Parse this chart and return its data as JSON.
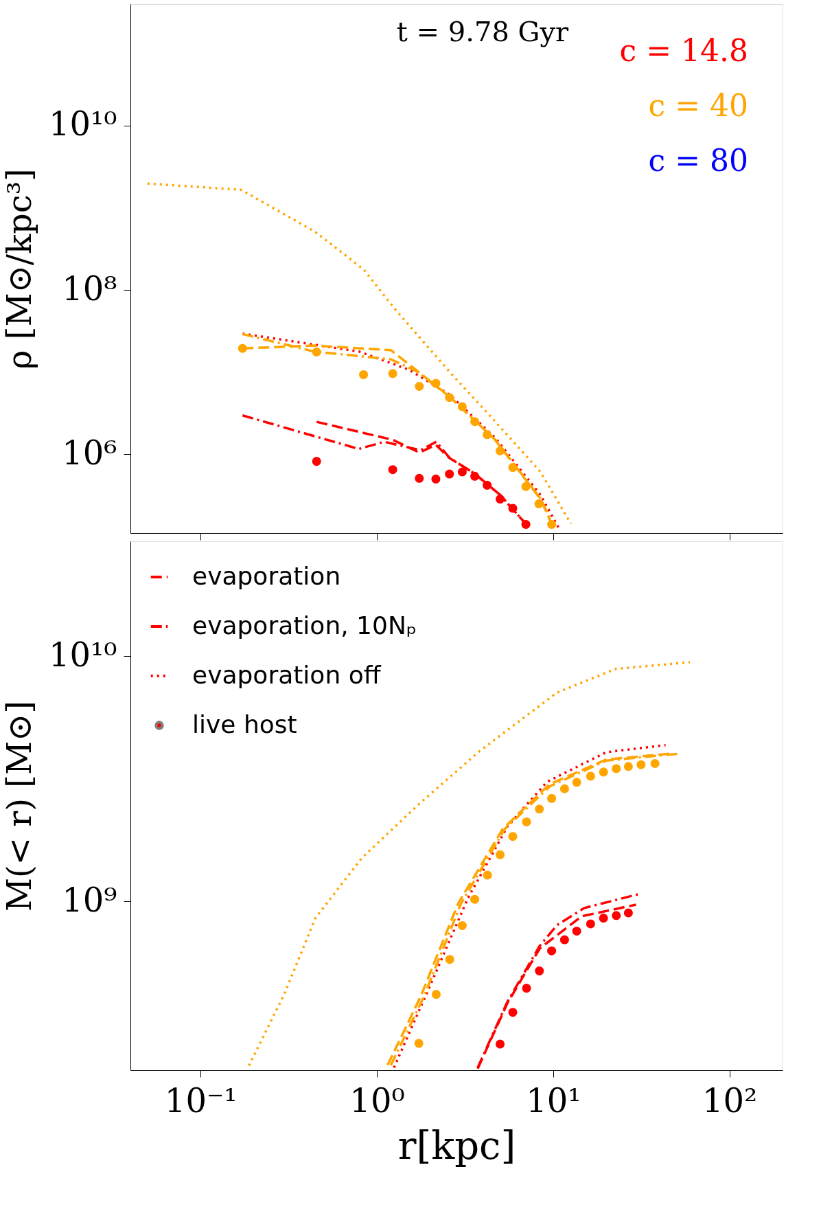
{
  "chart_data": [
    {
      "type": "line",
      "ylabel": "ρ [M⊙/kpc³]",
      "annotations": [
        "t  =  9.78 Gyr"
      ],
      "log": "xy",
      "legend": "top right",
      "tick_labels": "y",
      "xlim": [
        0.04,
        200
      ],
      "xticks": [
        {
          "value": 0.1,
          "label": null
        },
        {
          "value": 1,
          "label": null
        },
        {
          "value": 10,
          "label": null
        },
        {
          "value": 100,
          "label": null
        }
      ],
      "ylim": [
        110000,
        300000000000
      ],
      "yticks": [
        {
          "value": 1000000,
          "label": "10⁶"
        },
        {
          "value": 100000000,
          "label": "10⁸"
        },
        {
          "value": 10000000000,
          "label": "10¹⁰"
        }
      ],
      "series": [
        {
          "name": "c = 14.8",
          "color": "#ff0000",
          "line_style": "dashed",
          "x": [
            0.455,
            1.23,
            1.74,
            2.16,
            2.58,
            3.59,
            5.0,
            7.0
          ],
          "values": [
            2480000,
            1500000,
            1050000,
            1300000,
            900000,
            580000,
            320000,
            142000
          ]
        },
        {
          "color": "#ff0000",
          "line_style": "dashdot",
          "x": [
            0.173,
            0.79,
            1.1,
            1.77,
            2.17,
            2.59,
            3.59,
            5.0,
            7.0
          ],
          "values": [
            2970000,
            1160000,
            1420000,
            1120000,
            1420000,
            900000,
            580000,
            320000,
            142000
          ]
        },
        {
          "color": "#ff0000",
          "line_style": "dotted",
          "x": [
            0.173,
            0.79,
            1.52,
            2.59,
            4.69,
            8.47,
            10.9
          ],
          "values": [
            29400000,
            17800000,
            10700000,
            5300000,
            1590000,
            320000,
            120000
          ]
        },
        {
          "color": "#ff0000",
          "type": "scatter",
          "marker": "circle",
          "x": [
            0.455,
            1.23,
            1.74,
            2.16,
            2.58,
            3.05,
            3.59,
            4.22,
            5.0,
            5.9,
            7.0
          ],
          "values": [
            820000,
            650000,
            510000,
            500000,
            575000,
            610000,
            540000,
            420000,
            285000,
            220000,
            140000
          ]
        },
        {
          "name": "c = 40",
          "color": "#ffa500",
          "line_style": "dashed",
          "x": [
            0.173,
            0.44,
            1.2,
            1.66,
            2.59,
            4.69,
            8.47,
            10.1
          ],
          "values": [
            19400000,
            21000000,
            18500000,
            10700000,
            5000000,
            1490000,
            285000,
            125000
          ]
        },
        {
          "color": "#ffa500",
          "line_style": "dashdot",
          "x": [
            0.173,
            0.44,
            1.2,
            1.66,
            2.59,
            4.69,
            8.47,
            10.1
          ],
          "values": [
            29000000,
            17800000,
            14300000,
            10400000,
            5000000,
            1500000,
            290000,
            130000
          ]
        },
        {
          "color": "#ffa500",
          "line_style": "dotted",
          "x": [
            0.05,
            0.17,
            0.446,
            0.84,
            1.27,
            2.59,
            4.69,
            8.47,
            12.6
          ],
          "values": [
            1970000000,
            1650000000,
            510000000,
            178000000,
            58000000,
            10000000,
            2500000,
            610000,
            143000
          ]
        },
        {
          "color": "#ffa500",
          "type": "scatter",
          "marker": "circle",
          "x": [
            0.173,
            0.455,
            0.84,
            1.23,
            1.74,
            2.16,
            2.58,
            3.05,
            3.59,
            4.22,
            5.0,
            5.9,
            7.0,
            8.3,
            9.8
          ],
          "values": [
            19400000,
            17600000,
            9300000,
            9600000,
            6700000,
            7300000,
            4900000,
            3800000,
            2500000,
            1730000,
            1100000,
            690000,
            405000,
            250000,
            140000
          ]
        },
        {
          "name": "c = 80",
          "color": "#0000ff"
        }
      ]
    },
    {
      "type": "line",
      "xlabel": "r[kpc]",
      "ylabel": "M(< r) [M⊙]",
      "log": "xy",
      "legend": "top left",
      "xlim": [
        0.04,
        200
      ],
      "xticks": [
        {
          "value": 0.1,
          "label": "10⁻¹"
        },
        {
          "value": 1,
          "label": "10⁰"
        },
        {
          "value": 10,
          "label": "10¹"
        },
        {
          "value": 100,
          "label": "10²"
        }
      ],
      "ylim": [
        205000000,
        29400000000
      ],
      "yticks": [
        {
          "value": 1000000000,
          "label": "10⁹"
        },
        {
          "value": 10000000000,
          "label": "10¹⁰"
        }
      ],
      "series": [
        {
          "name": "evaporation",
          "color": "#ff0000",
          "line_style": "dashed",
          "x": [
            3.73,
            5.5,
            8.4,
            14.5,
            29.5
          ],
          "values": [
            208000000,
            385000000,
            644000000,
            870000000,
            970000000
          ]
        },
        {
          "name": "evaporation, 10Nₚ",
          "color": "#ff0000",
          "line_style": "dashdot",
          "x": [
            3.73,
            5.5,
            8.4,
            10.5,
            15,
            30.4
          ],
          "values": [
            210000000,
            390000000,
            660000000,
            800000000,
            940000000,
            1070000000
          ]
        },
        {
          "name": "evaporation off",
          "color": "#ff0000",
          "line_style": "dotted",
          "x": [
            1.25,
            2.09,
            3.28,
            5.5,
            9.2,
            20,
            43.4
          ],
          "values": [
            210000000,
            486000000,
            1030000000,
            2020000000,
            3070000000,
            4060000000,
            4340000000
          ]
        },
        {
          "name": "live host",
          "color": "#ff0000",
          "type": "scatter",
          "marker": "circle",
          "x": [
            5.0,
            5.9,
            7.06,
            8.35,
            9.8,
            11.6,
            13.6,
            16.3,
            19.3,
            22.8,
            26.7
          ],
          "values": [
            262000000,
            353000000,
            443000000,
            521000000,
            629000000,
            698000000,
            757000000,
            810000000,
            855000000,
            876000000,
            898000000
          ]
        },
        {
          "color": "#ffa500",
          "line_style": "dashed",
          "x": [
            1.15,
            1.78,
            2.89,
            5.16,
            9.5,
            20,
            47
          ],
          "values": [
            215000000,
            413000000,
            980000000,
            1970000000,
            3000000000,
            3790000000,
            4010000000
          ]
        },
        {
          "color": "#ffa500",
          "line_style": "dashdot",
          "x": [
            1.2,
            1.85,
            3.0,
            5.3,
            9.6,
            20,
            51
          ],
          "values": [
            215000000,
            410000000,
            980000000,
            1970000000,
            2950000000,
            3750000000,
            4000000000
          ]
        },
        {
          "color": "#ffa500",
          "line_style": "dotted",
          "x": [
            0.188,
            0.298,
            0.448,
            0.826,
            1.77,
            3.81,
            10.5,
            22.6,
            59.6
          ],
          "values": [
            214000000,
            418000000,
            856000000,
            1510000000,
            2530000000,
            4090000000,
            7100000000,
            8870000000,
            9450000000
          ]
        },
        {
          "color": "#ffa500",
          "type": "scatter",
          "marker": "circle",
          "x": [
            1.73,
            2.17,
            2.59,
            3.05,
            3.59,
            4.24,
            5.0,
            5.9,
            7.06,
            8.35,
            9.8,
            11.6,
            13.6,
            16.3,
            19.3,
            22.8,
            26.7,
            31.5,
            37.8
          ],
          "values": [
            264000000,
            418000000,
            580000000,
            797000000,
            1020000000,
            1280000000,
            1550000000,
            1840000000,
            2110000000,
            2380000000,
            2630000000,
            2880000000,
            3060000000,
            3240000000,
            3370000000,
            3480000000,
            3550000000,
            3610000000,
            3650000000
          ]
        }
      ]
    }
  ]
}
